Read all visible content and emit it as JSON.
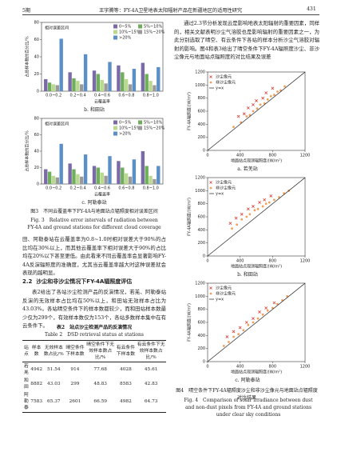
{
  "header": {
    "issue": "5期",
    "running_title": "王宇腾等：FY-4A卫星地表太阳辐射产品在新疆地区的适用性研究",
    "page": "431"
  },
  "figure3": {
    "panels": [
      {
        "caption": "b. 和田站",
        "chart": {
          "type": "bar",
          "y_label": "占总样本数的百分比/%",
          "x_label": "云覆盖率",
          "legend_title": "相对误差区间",
          "categories": [
            "0.0~0.2",
            "0.2~0.4",
            "0.4~0.6",
            "0.6~0.8",
            "0.8~1.0"
          ],
          "series": [
            {
              "name": "0~5%",
              "color": "#7b6aa8",
              "values": [
                14,
                22,
                24,
                30,
                33
              ]
            },
            {
              "name": "5%~10%",
              "color": "#6fae5a",
              "values": [
                10,
                15,
                20,
                22,
                20
              ]
            },
            {
              "name": "10%~15%",
              "color": "#b9d98f",
              "values": [
                8,
                12,
                13,
                14,
                12
              ]
            },
            {
              "name": "15%~20%",
              "color": "#9a9a9a",
              "values": [
                7,
                8,
                9,
                8,
                7
              ]
            },
            {
              "name": ">20%",
              "color": "#5b8fc7",
              "values": [
                61,
                43,
                34,
                26,
                28
              ]
            }
          ],
          "ylim": [
            0,
            80
          ],
          "yticks": [
            0,
            20,
            40,
            60,
            80
          ]
        }
      },
      {
        "caption": "c. 阿勒泰站",
        "chart": {
          "type": "bar",
          "y_label": "占总样本数的百分比/%",
          "x_label": "云覆盖率",
          "legend_title": "相对误差区间",
          "categories": [
            "0.0~0.2",
            "0.2~0.4",
            "0.4~0.6",
            "0.6~0.8",
            "0.8~1.0"
          ],
          "series": [
            {
              "name": "0~5%",
              "color": "#7b6aa8",
              "values": [
                18,
                25,
                22,
                28,
                40
              ]
            },
            {
              "name": "5%~10%",
              "color": "#6fae5a",
              "values": [
                15,
                18,
                20,
                20,
                22
              ]
            },
            {
              "name": "10%~15%",
              "color": "#b9d98f",
              "values": [
                10,
                12,
                14,
                13,
                10
              ]
            },
            {
              "name": "15%~20%",
              "color": "#9a9a9a",
              "values": [
                8,
                9,
                10,
                9,
                6
              ]
            },
            {
              "name": ">20%",
              "color": "#5b8fc7",
              "values": [
                49,
                36,
                34,
                30,
                22
              ]
            }
          ],
          "ylim": [
            0,
            80
          ],
          "yticks": [
            0,
            20,
            40,
            60,
            80
          ]
        }
      }
    ],
    "caption_zh": "图3　不同云覆盖率下FY-4A与地面站点辐照度相对误差区间",
    "caption_en": "Fig. 3　Relative error intervals of radiation between FY-4A and ground stations for different cloud coverage"
  },
  "left_paragraph": "田、阿勒泰站在云覆盖率为0.8~1.0时相对误差大于90%的占比均在30%以上，而其他云覆盖率下相对误差大于90%的占比均在20%以下甚至更低。由此看来不同云覆盖率会显著影响FY-4A反演辐照度的准确度，尤其当云覆盖率越大时这种误差就会表现的越明显。",
  "section": {
    "number": "2.2",
    "title": "沙尘和非沙尘情况下FY-4A辐照度评估"
  },
  "section_paragraph": "表2给出了各站沙尘检测产品的反演情况，若羌、阿勒泰站反演的无效样本占比均在50%以上，和田站无效样本占比为43.03%。各站晴空条件下的样本数都较少，而和田站样本数最少仅为299个，有效样本数仅为153个，各站多数样本集中在有云条件下。",
  "table": {
    "title_zh": "表2　站点沙尘检测产品的反演情况",
    "title_en": "Table 2　DSD retrieval status at stations",
    "header": [
      "站点",
      "样本数",
      "无效样本数占比/%",
      "晴空条件下样本数",
      "晴空条件下无效样本数占比/%",
      "有云条件下样本数",
      "有云条件下无效样本数占比/%"
    ],
    "rows": [
      [
        "若羌",
        4942,
        51.54,
        914,
        77.68,
        4028,
        45.61
      ],
      [
        "和田",
        8882,
        43.03,
        299,
        48.83,
        8583,
        42.83
      ],
      [
        "阿勒泰",
        7583,
        65.37,
        2601,
        66.59,
        4982,
        64.73
      ]
    ]
  },
  "right_paragraph": "通过2.3节分析发现云是影响地表太阳辐射的重要因素，同样的，相关文献表明沙尘气溶胶也是影响辐射的重要因素之一，为此分别选取了晴空、有云条件下各站的样本分析沙尘气溶胶对辐射的影响。图4和表3给出了晴空条件下FY-4A辐照度沙尘、非沙尘像元与地面站点辐照度的对比结果及误差",
  "figure4": {
    "panels": [
      {
        "caption": "a. 若羌站",
        "chart": {
          "type": "scatter",
          "x_label": "地面站点观测辐照度/(W/m²)",
          "y_label": "FY-4A辐照度/(W/m²)",
          "xlim": [
            0,
            1200
          ],
          "ylim": [
            0,
            1200
          ],
          "xticks": [
            0,
            400,
            800,
            1200
          ],
          "yticks": [
            0,
            200,
            400,
            600,
            800,
            1000,
            1200
          ],
          "series": [
            {
              "name": "沙尘像元",
              "color": "#d8413a",
              "marker": "x",
              "x": [
                380,
                450,
                500,
                560,
                600,
                680,
                720,
                800
              ],
              "y": [
                520,
                560,
                650,
                700,
                760,
                800,
                880,
                950
              ]
            },
            {
              "name": "非沙尘像元",
              "color": "#f0a05a",
              "marker": "circle",
              "x": [
                320,
                410,
                480,
                520,
                560,
                610,
                650,
                700,
                740,
                780,
                820,
                860,
                900,
                950
              ],
              "y": [
                360,
                430,
                520,
                540,
                600,
                640,
                700,
                720,
                780,
                830,
                850,
                900,
                920,
                980
              ]
            },
            {
              "name": "y=x",
              "color": "#222222",
              "marker": "line",
              "x": [
                0,
                1200
              ],
              "y": [
                0,
                1200
              ]
            }
          ]
        }
      },
      {
        "caption": "b. 和田站",
        "chart": {
          "type": "scatter",
          "x_label": "地面站点观测辐照度/(W/m²)",
          "y_label": "FY-4A辐照度/(W/m²)",
          "xlim": [
            0,
            1200
          ],
          "ylim": [
            0,
            1200
          ],
          "xticks": [
            0,
            400,
            800,
            1200
          ],
          "yticks": [
            0,
            200,
            400,
            600,
            800,
            1000,
            1200
          ],
          "series": [
            {
              "name": "沙尘像元",
              "color": "#d8413a",
              "marker": "x",
              "x": [
                280,
                350,
                420,
                500,
                560,
                640,
                700,
                780
              ],
              "y": [
                500,
                580,
                640,
                720,
                760,
                820,
                860,
                920
              ]
            },
            {
              "name": "非沙尘像元",
              "color": "#f0a05a",
              "marker": "circle",
              "x": [
                300,
                360,
                420,
                480,
                520,
                580,
                620,
                680,
                720,
                760,
                820,
                880,
                940,
                1000
              ],
              "y": [
                420,
                480,
                560,
                600,
                640,
                700,
                720,
                760,
                800,
                820,
                860,
                900,
                960,
                1000
              ]
            },
            {
              "name": "y=x",
              "color": "#222222",
              "marker": "line",
              "x": [
                0,
                1200
              ],
              "y": [
                0,
                1200
              ]
            }
          ]
        }
      },
      {
        "caption": "c. 阿勒泰站",
        "chart": {
          "type": "scatter",
          "x_label": "地面站点观测辐照度/(W/m²)",
          "y_label": "FY-4A辐照度/(W/m²)",
          "xlim": [
            0,
            1200
          ],
          "ylim": [
            0,
            1200
          ],
          "xticks": [
            0,
            400,
            800,
            1200
          ],
          "yticks": [
            0,
            200,
            400,
            600,
            800,
            1000,
            1200
          ],
          "series": [
            {
              "name": "沙尘像元",
              "color": "#d8413a",
              "marker": "x",
              "x": [
                240,
                320,
                400,
                480,
                560,
                640,
                720,
                820
              ],
              "y": [
                380,
                460,
                520,
                600,
                660,
                760,
                820,
                900
              ]
            },
            {
              "name": "非沙尘像元",
              "color": "#f0a05a",
              "marker": "circle",
              "x": [
                200,
                260,
                320,
                380,
                440,
                500,
                560,
                620,
                680,
                740,
                800,
                860,
                920,
                980
              ],
              "y": [
                240,
                300,
                380,
                420,
                480,
                560,
                600,
                660,
                720,
                780,
                820,
                880,
                940,
                1000
              ]
            },
            {
              "name": "y=x",
              "color": "#222222",
              "marker": "line",
              "x": [
                0,
                1200
              ],
              "y": [
                0,
                1200
              ]
            }
          ]
        }
      }
    ],
    "caption_zh": "图4　晴空条件下FY-4A辐照度沙尘和非沙尘像元与地面站点辐照度对比结果",
    "caption_en": "Fig. 4　Comparison of solar irradiance between dust and non-dust pixels from FY-4A and ground stations under clear sky conditions"
  }
}
